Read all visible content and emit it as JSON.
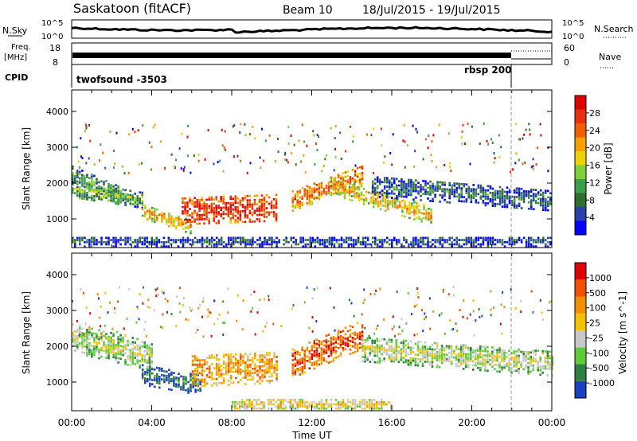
{
  "header": {
    "station": "Saskatoon (fitACF)",
    "beam": "Beam 10",
    "date_range": "18/Jul/2015 - 19/Jul/2015"
  },
  "strips": {
    "nsky_label": "N.Sky",
    "nsky_ticks": [
      "10^5",
      "10^0"
    ],
    "nsearch_label": "N.Search",
    "nsearch_ticks": [
      "10^5",
      "10^0"
    ],
    "freq_label_1": "Freq.",
    "freq_label_2": "[MHz]",
    "freq_ticks": [
      "18",
      "8"
    ],
    "nave_label": "Nave",
    "nave_ticks": [
      "60",
      "0"
    ],
    "cpid_label": "CPID",
    "cpid_mode_1": "twofsound -3503",
    "cpid_mode_2": "rbsp 200"
  },
  "axes": {
    "ylabel": "Slant Range [km]",
    "yticks": [
      "4000",
      "3000",
      "2000",
      "1000"
    ],
    "xticks": [
      "00:00",
      "04:00",
      "08:00",
      "12:00",
      "16:00",
      "20:00",
      "00:00"
    ],
    "xlabel": "Time UT"
  },
  "chart_data": [
    {
      "type": "heatmap",
      "panel": "power",
      "x_range_hours": [
        0,
        24
      ],
      "ylim": [
        200,
        4600
      ],
      "colorbar_label": "Power [dB]",
      "colorbar_ticks": [
        "28",
        "24",
        "20",
        "16",
        "12",
        "8",
        "4"
      ],
      "colors": [
        "#0000ff",
        "#2a3fa8",
        "#2e6e30",
        "#3b9e4a",
        "#7fd03a",
        "#f0d000",
        "#f5a000",
        "#f06000",
        "#e83010",
        "#e00000"
      ],
      "bands": [
        {
          "t0": 0,
          "t1": 2.5,
          "r_start": 2200,
          "r_end": 1600,
          "width": 250,
          "level": 0.35
        },
        {
          "t0": 0,
          "t1": 3.5,
          "r_start": 1800,
          "r_end": 1500,
          "width": 220,
          "level": 0.4
        },
        {
          "t0": 3.5,
          "t1": 6,
          "r_start": 1200,
          "r_end": 750,
          "width": 200,
          "level": 0.65
        },
        {
          "t0": 5.5,
          "t1": 10.2,
          "r_start": 1200,
          "r_end": 1300,
          "width": 380,
          "level": 0.9
        },
        {
          "t0": 11,
          "t1": 14.5,
          "r_start": 1500,
          "r_end": 2200,
          "width": 300,
          "level": 0.75
        },
        {
          "t0": 13,
          "t1": 18,
          "r_start": 1900,
          "r_end": 1050,
          "width": 250,
          "level": 0.6
        },
        {
          "t0": 15,
          "t1": 24,
          "r_start": 1900,
          "r_end": 1500,
          "width": 300,
          "level": 0.25
        },
        {
          "t0": 0,
          "t1": 24,
          "r_start": 350,
          "r_end": 350,
          "width": 150,
          "level": 0.2
        }
      ]
    },
    {
      "type": "heatmap",
      "panel": "velocity",
      "x_range_hours": [
        0,
        24
      ],
      "ylim": [
        200,
        4600
      ],
      "colorbar_label": "Velocity [m s^-1]",
      "colorbar_ticks": [
        "1000",
        "500",
        "100",
        "25",
        "-25",
        "-100",
        "-500",
        "-1000"
      ],
      "colors": [
        "#1a3fc0",
        "#2e8040",
        "#5ccc3a",
        "#c8c8c8",
        "#f5c000",
        "#f09000",
        "#f05000",
        "#e00000"
      ],
      "bands": [
        {
          "t0": 0,
          "t1": 4,
          "r_start": 2200,
          "r_end": 1700,
          "width": 400,
          "level": 0.45
        },
        {
          "t0": 3.5,
          "t1": 6.5,
          "r_start": 1200,
          "r_end": 900,
          "width": 300,
          "level": 0.15
        },
        {
          "t0": 6,
          "t1": 10.2,
          "r_start": 1300,
          "r_end": 1400,
          "width": 450,
          "level": 0.7
        },
        {
          "t0": 11,
          "t1": 14.5,
          "r_start": 1500,
          "r_end": 2300,
          "width": 400,
          "level": 0.85
        },
        {
          "t0": 14.5,
          "t1": 24,
          "r_start": 1900,
          "r_end": 1500,
          "width": 350,
          "level": 0.45
        },
        {
          "t0": 8,
          "t1": 16,
          "r_start": 350,
          "r_end": 350,
          "width": 180,
          "level": 0.55
        }
      ]
    }
  ]
}
